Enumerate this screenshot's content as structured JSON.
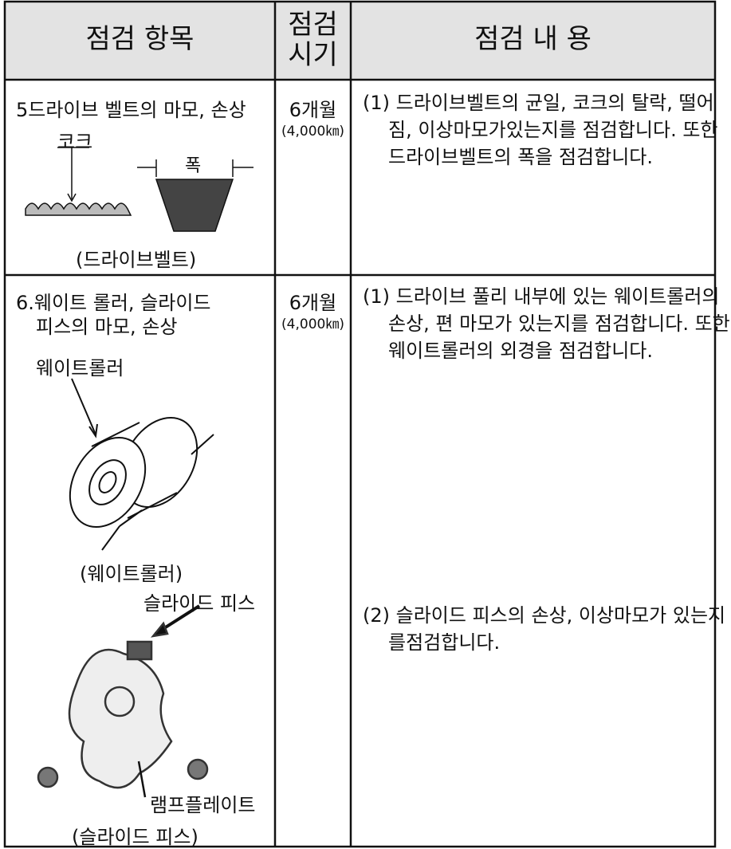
{
  "table": {
    "headers": [
      [
        "점검 항목"
      ],
      [
        "점검",
        "시기"
      ],
      [
        "점검 내 용"
      ]
    ],
    "rows": [
      {
        "item": [
          "5드라이브 벨트의 마모, 손상"
        ],
        "figure_labels": [
          "코크",
          "폭",
          "(드라이브벨트)"
        ],
        "period": "6개월",
        "distance": "(4,000㎞)",
        "contents": [
          "(1) 드라이브벨트의 균일, 코크의 탈락, 떨어짐, 이상마모가있는지를 점검합니다. 또한 드라이브벨트의 폭을 점검합니다."
        ]
      },
      {
        "item": [
          "6.웨이트 롤러, 슬라이드",
          "피스의 마모, 손상"
        ],
        "figure_labels": [
          "웨이트롤러",
          "(웨이트롤러)",
          "슬라이드 피스",
          "램프플레이트",
          "(슬라이드 피스)"
        ],
        "period": "6개월",
        "distance": "(4,000㎞)",
        "contents": [
          "(1) 드라이브 풀리 내부에 있는 웨이트롤러의 손상, 편 마모가 있는지를 점검합니다. 또한웨이트롤러의 외경을 점검합니다.",
          "(2) 슬라이드 피스의 손상, 이상마모가 있는지를점검합니다."
        ]
      }
    ]
  }
}
